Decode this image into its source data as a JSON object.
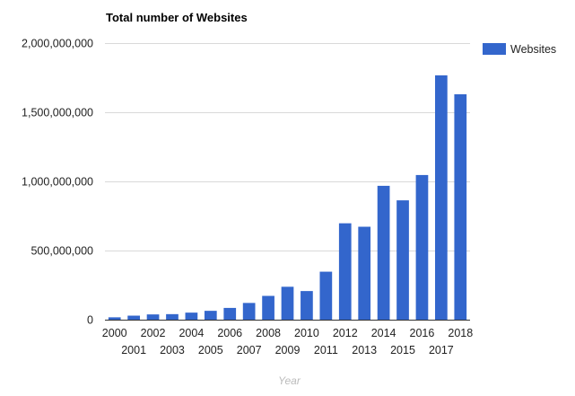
{
  "chart_data": {
    "type": "bar",
    "title": "Total number of Websites",
    "xlabel": "Year",
    "ylabel": "",
    "ylim": [
      0,
      2000000000
    ],
    "yticks": [
      0,
      500000000,
      1000000000,
      1500000000,
      2000000000
    ],
    "ytick_labels": [
      "0",
      "500,000,000",
      "1,000,000,000",
      "1,500,000,000",
      "2,000,000,000"
    ],
    "grid": true,
    "legend_position": "right",
    "categories": [
      "2000",
      "2001",
      "2002",
      "2003",
      "2004",
      "2005",
      "2006",
      "2007",
      "2008",
      "2009",
      "2010",
      "2011",
      "2012",
      "2013",
      "2014",
      "2015",
      "2016",
      "2017",
      "2018"
    ],
    "series": [
      {
        "name": "Websites",
        "color": "#3366cc",
        "values": [
          17000000,
          29000000,
          38000000,
          40000000,
          51000000,
          64000000,
          85000000,
          121000000,
          172000000,
          238000000,
          207000000,
          347000000,
          697000000,
          672000000,
          968000000,
          863000000,
          1046000000,
          1767000000,
          1630000000
        ]
      }
    ]
  }
}
